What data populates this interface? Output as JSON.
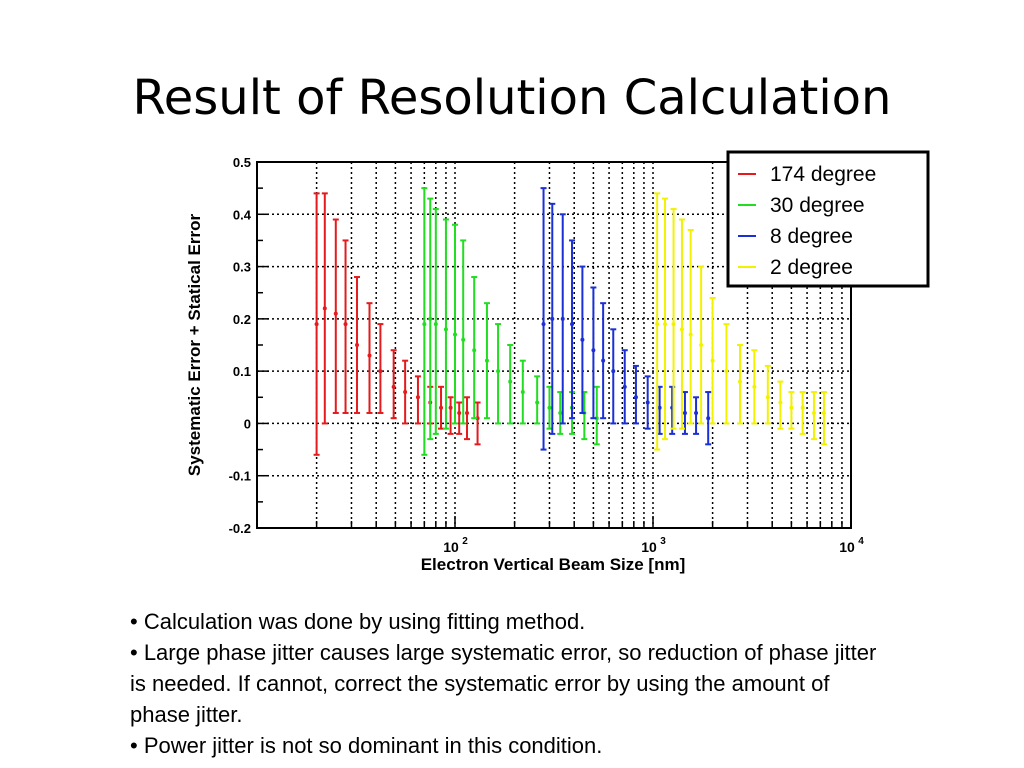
{
  "slide": {
    "title": "Result of Resolution Calculation",
    "bullets": [
      "• Calculation was done by using fitting method.",
      "• Large phase jitter causes large systematic error, so reduction of phase jitter is needed. If cannot, correct the systematic error by using the amount of phase jitter.",
      "• Power jitter is not so dominant in this condition."
    ]
  },
  "chart_data": {
    "type": "scatter",
    "error_bars": true,
    "xlabel": "Electron Vertical Beam Size [nm]",
    "ylabel": "Systematic Error + Statical Error",
    "x_scale": "log",
    "xlim": [
      10,
      10000
    ],
    "ylim": [
      -0.2,
      0.5
    ],
    "x_tick_labels": [
      "10",
      "10",
      "10"
    ],
    "x_tick_exponents": [
      "2",
      "3",
      "4"
    ],
    "y_ticks": [
      "-0.2",
      "-0.1",
      "0",
      "0.1",
      "0.2",
      "0.3",
      "0.4",
      "0.5"
    ],
    "grid": true,
    "legend_position": "top-right",
    "series": [
      {
        "name": "174 degree",
        "color": "#e41a1c",
        "points": [
          {
            "x": 20,
            "y": 0.19,
            "lo": -0.06,
            "hi": 0.44
          },
          {
            "x": 22,
            "y": 0.22,
            "lo": 0.0,
            "hi": 0.44
          },
          {
            "x": 25,
            "y": 0.21,
            "lo": 0.02,
            "hi": 0.39
          },
          {
            "x": 28,
            "y": 0.19,
            "lo": 0.02,
            "hi": 0.35
          },
          {
            "x": 32,
            "y": 0.15,
            "lo": 0.02,
            "hi": 0.28
          },
          {
            "x": 37,
            "y": 0.13,
            "lo": 0.02,
            "hi": 0.23
          },
          {
            "x": 42,
            "y": 0.1,
            "lo": 0.02,
            "hi": 0.19
          },
          {
            "x": 49,
            "y": 0.07,
            "lo": 0.01,
            "hi": 0.14
          },
          {
            "x": 56,
            "y": 0.06,
            "lo": 0.0,
            "hi": 0.12
          },
          {
            "x": 65,
            "y": 0.05,
            "lo": 0.0,
            "hi": 0.09
          },
          {
            "x": 75,
            "y": 0.04,
            "lo": 0.0,
            "hi": 0.07
          },
          {
            "x": 85,
            "y": 0.03,
            "lo": -0.01,
            "hi": 0.07
          },
          {
            "x": 95,
            "y": 0.03,
            "lo": -0.02,
            "hi": 0.05
          },
          {
            "x": 105,
            "y": 0.02,
            "lo": -0.02,
            "hi": 0.04
          },
          {
            "x": 115,
            "y": 0.02,
            "lo": -0.03,
            "hi": 0.05
          },
          {
            "x": 130,
            "y": 0.01,
            "lo": -0.04,
            "hi": 0.04
          }
        ]
      },
      {
        "name": "30 degree",
        "color": "#22dd22",
        "points": [
          {
            "x": 70,
            "y": 0.19,
            "lo": -0.06,
            "hi": 0.45
          },
          {
            "x": 75,
            "y": 0.2,
            "lo": -0.03,
            "hi": 0.43
          },
          {
            "x": 80,
            "y": 0.19,
            "lo": -0.02,
            "hi": 0.41
          },
          {
            "x": 90,
            "y": 0.18,
            "lo": -0.01,
            "hi": 0.39
          },
          {
            "x": 100,
            "y": 0.17,
            "lo": 0.0,
            "hi": 0.38
          },
          {
            "x": 110,
            "y": 0.16,
            "lo": 0.0,
            "hi": 0.35
          },
          {
            "x": 125,
            "y": 0.14,
            "lo": 0.01,
            "hi": 0.28
          },
          {
            "x": 145,
            "y": 0.12,
            "lo": 0.01,
            "hi": 0.23
          },
          {
            "x": 165,
            "y": 0.1,
            "lo": 0.0,
            "hi": 0.19
          },
          {
            "x": 190,
            "y": 0.08,
            "lo": 0.0,
            "hi": 0.15
          },
          {
            "x": 220,
            "y": 0.06,
            "lo": 0.0,
            "hi": 0.12
          },
          {
            "x": 260,
            "y": 0.04,
            "lo": 0.0,
            "hi": 0.09
          },
          {
            "x": 300,
            "y": 0.03,
            "lo": -0.01,
            "hi": 0.07
          },
          {
            "x": 340,
            "y": 0.02,
            "lo": -0.02,
            "hi": 0.06
          },
          {
            "x": 390,
            "y": 0.03,
            "lo": -0.02,
            "hi": 0.06
          },
          {
            "x": 450,
            "y": 0.02,
            "lo": -0.03,
            "hi": 0.06
          },
          {
            "x": 520,
            "y": 0.01,
            "lo": -0.04,
            "hi": 0.07
          }
        ]
      },
      {
        "name": "8 degree",
        "color": "#1a2fd6",
        "points": [
          {
            "x": 280,
            "y": 0.19,
            "lo": -0.05,
            "hi": 0.45
          },
          {
            "x": 310,
            "y": 0.2,
            "lo": -0.02,
            "hi": 0.42
          },
          {
            "x": 350,
            "y": 0.2,
            "lo": 0.0,
            "hi": 0.4
          },
          {
            "x": 390,
            "y": 0.19,
            "lo": 0.01,
            "hi": 0.35
          },
          {
            "x": 440,
            "y": 0.16,
            "lo": 0.02,
            "hi": 0.3
          },
          {
            "x": 500,
            "y": 0.14,
            "lo": 0.01,
            "hi": 0.26
          },
          {
            "x": 560,
            "y": 0.12,
            "lo": 0.01,
            "hi": 0.23
          },
          {
            "x": 630,
            "y": 0.1,
            "lo": 0.0,
            "hi": 0.18
          },
          {
            "x": 720,
            "y": 0.07,
            "lo": 0.0,
            "hi": 0.14
          },
          {
            "x": 820,
            "y": 0.05,
            "lo": 0.0,
            "hi": 0.11
          },
          {
            "x": 940,
            "y": 0.04,
            "lo": -0.01,
            "hi": 0.09
          },
          {
            "x": 1080,
            "y": 0.03,
            "lo": -0.02,
            "hi": 0.07
          },
          {
            "x": 1250,
            "y": 0.03,
            "lo": -0.02,
            "hi": 0.07
          },
          {
            "x": 1450,
            "y": 0.02,
            "lo": -0.02,
            "hi": 0.06
          },
          {
            "x": 1650,
            "y": 0.02,
            "lo": -0.02,
            "hi": 0.05
          },
          {
            "x": 1900,
            "y": 0.01,
            "lo": -0.04,
            "hi": 0.06
          }
        ]
      },
      {
        "name": "2 degree",
        "color": "#f2f200",
        "points": [
          {
            "x": 1050,
            "y": 0.19,
            "lo": -0.05,
            "hi": 0.44
          },
          {
            "x": 1150,
            "y": 0.19,
            "lo": -0.03,
            "hi": 0.43
          },
          {
            "x": 1270,
            "y": 0.19,
            "lo": -0.01,
            "hi": 0.41
          },
          {
            "x": 1400,
            "y": 0.18,
            "lo": -0.01,
            "hi": 0.39
          },
          {
            "x": 1550,
            "y": 0.17,
            "lo": 0.0,
            "hi": 0.37
          },
          {
            "x": 1750,
            "y": 0.15,
            "lo": 0.0,
            "hi": 0.3
          },
          {
            "x": 2000,
            "y": 0.12,
            "lo": 0.0,
            "hi": 0.24
          },
          {
            "x": 2350,
            "y": 0.1,
            "lo": 0.0,
            "hi": 0.19
          },
          {
            "x": 2750,
            "y": 0.08,
            "lo": 0.0,
            "hi": 0.15
          },
          {
            "x": 3250,
            "y": 0.07,
            "lo": 0.0,
            "hi": 0.14
          },
          {
            "x": 3800,
            "y": 0.05,
            "lo": 0.0,
            "hi": 0.11
          },
          {
            "x": 4400,
            "y": 0.04,
            "lo": -0.01,
            "hi": 0.08
          },
          {
            "x": 5000,
            "y": 0.03,
            "lo": -0.01,
            "hi": 0.06
          },
          {
            "x": 5700,
            "y": 0.03,
            "lo": -0.02,
            "hi": 0.06
          },
          {
            "x": 6500,
            "y": 0.02,
            "lo": -0.03,
            "hi": 0.06
          },
          {
            "x": 7300,
            "y": 0.02,
            "lo": -0.04,
            "hi": 0.06
          }
        ]
      }
    ]
  }
}
